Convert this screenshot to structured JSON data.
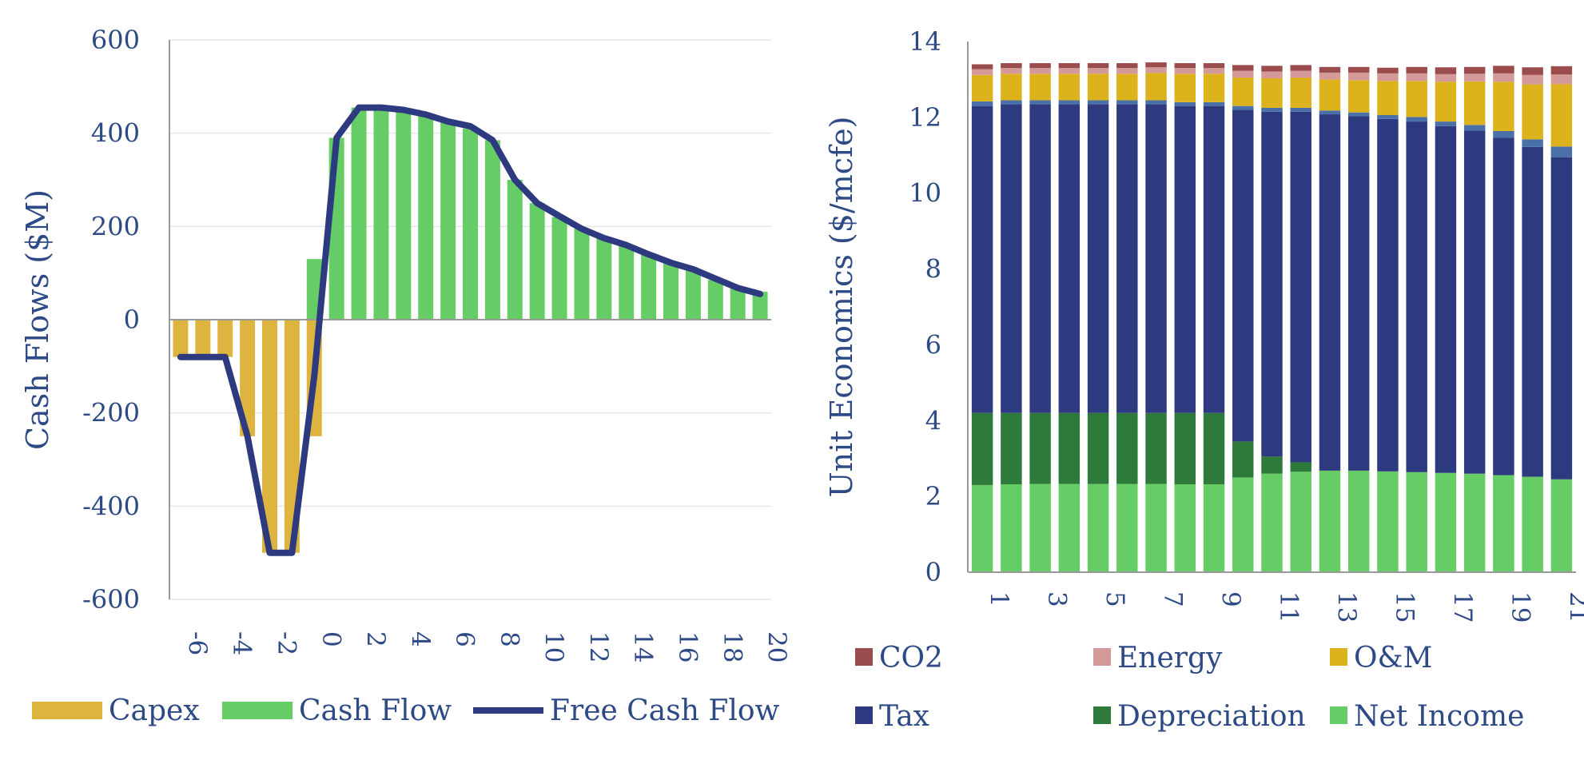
{
  "colors": {
    "capex": "#ddb43e",
    "cash_flow": "#66cc66",
    "fcf": "#2d3a80",
    "co2": "#9a4b4b",
    "energy": "#d49a9a",
    "om": "#dcb31d",
    "smallblue": "#4a70a8",
    "tax": "#2d3a80",
    "depreciation": "#2e7a3a",
    "net_income": "#66cc66",
    "text": "#2d4a86",
    "grid": "#e6e6e6",
    "axis": "#999999"
  },
  "chart_data": [
    {
      "type": "bar",
      "ylabel": "Cash Flows ($M)",
      "xlabel": "",
      "ylim": [
        -600,
        600
      ],
      "yticks": [
        600,
        400,
        200,
        0,
        -200,
        -400,
        -600
      ],
      "x": [
        -6,
        -5,
        -4,
        -3,
        -2,
        -1,
        0,
        1,
        2,
        3,
        4,
        5,
        6,
        7,
        8,
        9,
        10,
        11,
        12,
        13,
        14,
        15,
        16,
        17,
        18,
        19,
        20
      ],
      "xtick_labels": [
        "-6",
        "-4",
        "-2",
        "0",
        "2",
        "4",
        "6",
        "8",
        "10",
        "12",
        "14",
        "16",
        "18",
        "20"
      ],
      "series": [
        {
          "name": "Capex",
          "kind": "bar",
          "values": [
            -80,
            -80,
            -80,
            -250,
            -500,
            -500,
            -250,
            0,
            0,
            0,
            0,
            0,
            0,
            0,
            0,
            0,
            0,
            0,
            0,
            0,
            0,
            0,
            0,
            0,
            0,
            0,
            0
          ]
        },
        {
          "name": "Cash Flow",
          "kind": "bar",
          "values": [
            0,
            0,
            0,
            0,
            0,
            0,
            130,
            390,
            455,
            455,
            450,
            440,
            425,
            410,
            385,
            300,
            250,
            220,
            195,
            175,
            160,
            140,
            120,
            105,
            85,
            70,
            60
          ]
        },
        {
          "name": "Free Cash Flow",
          "kind": "line",
          "values": [
            -80,
            -80,
            -80,
            -250,
            -500,
            -500,
            -120,
            390,
            455,
            455,
            450,
            440,
            425,
            415,
            385,
            300,
            250,
            222,
            195,
            175,
            160,
            140,
            122,
            108,
            88,
            68,
            55
          ]
        }
      ],
      "legend": [
        "Capex",
        "Cash Flow",
        "Free Cash Flow"
      ],
      "legend_position": "bottom"
    },
    {
      "type": "bar",
      "stacked": true,
      "ylabel": "Unit Economics ($/mcfe)",
      "xlabel": "",
      "ylim": [
        0,
        14
      ],
      "yticks": [
        14,
        12,
        10,
        8,
        6,
        4,
        2,
        0
      ],
      "categories": [
        1,
        2,
        3,
        4,
        5,
        6,
        7,
        8,
        9,
        10,
        11,
        12,
        13,
        14,
        15,
        16,
        17,
        18,
        19,
        20,
        21
      ],
      "xtick_labels": [
        "1",
        "3",
        "5",
        "7",
        "9",
        "11",
        "13",
        "15",
        "17",
        "19",
        "21"
      ],
      "series": [
        {
          "name": "Net Income",
          "values": [
            2.3,
            2.32,
            2.33,
            2.33,
            2.33,
            2.33,
            2.33,
            2.32,
            2.32,
            2.5,
            2.6,
            2.65,
            2.68,
            2.68,
            2.66,
            2.64,
            2.62,
            2.6,
            2.56,
            2.52,
            2.45
          ]
        },
        {
          "name": "Depreciation",
          "values": [
            1.9,
            1.88,
            1.87,
            1.87,
            1.87,
            1.87,
            1.87,
            1.88,
            1.88,
            0.95,
            0.45,
            0.25,
            0,
            0,
            0,
            0,
            0,
            0,
            0,
            0,
            0
          ]
        },
        {
          "name": "Tax",
          "values": [
            8.1,
            8.15,
            8.15,
            8.15,
            8.15,
            8.15,
            8.15,
            8.1,
            8.1,
            8.75,
            9.1,
            9.25,
            9.4,
            9.35,
            9.3,
            9.25,
            9.15,
            9.05,
            8.9,
            8.7,
            8.5
          ]
        },
        {
          "name": "",
          "values": [
            0.12,
            0.1,
            0.1,
            0.1,
            0.1,
            0.1,
            0.1,
            0.1,
            0.1,
            0.1,
            0.1,
            0.1,
            0.1,
            0.1,
            0.1,
            0.12,
            0.12,
            0.15,
            0.18,
            0.2,
            0.28
          ]
        },
        {
          "name": "O&M",
          "values": [
            0.7,
            0.7,
            0.7,
            0.7,
            0.7,
            0.7,
            0.72,
            0.75,
            0.75,
            0.75,
            0.78,
            0.8,
            0.82,
            0.85,
            0.9,
            0.95,
            1.05,
            1.15,
            1.3,
            1.45,
            1.65
          ]
        },
        {
          "name": "Energy",
          "values": [
            0.15,
            0.15,
            0.15,
            0.15,
            0.15,
            0.15,
            0.15,
            0.15,
            0.15,
            0.18,
            0.18,
            0.18,
            0.18,
            0.2,
            0.2,
            0.2,
            0.2,
            0.2,
            0.22,
            0.25,
            0.25
          ]
        },
        {
          "name": "CO2",
          "values": [
            0.13,
            0.13,
            0.13,
            0.13,
            0.13,
            0.13,
            0.13,
            0.13,
            0.13,
            0.15,
            0.15,
            0.15,
            0.15,
            0.15,
            0.15,
            0.17,
            0.18,
            0.18,
            0.2,
            0.2,
            0.22
          ]
        }
      ],
      "legend": [
        "CO2",
        "Energy",
        "O&M",
        "Tax",
        "Depreciation",
        "Net Income"
      ],
      "legend_position": "bottom"
    }
  ]
}
